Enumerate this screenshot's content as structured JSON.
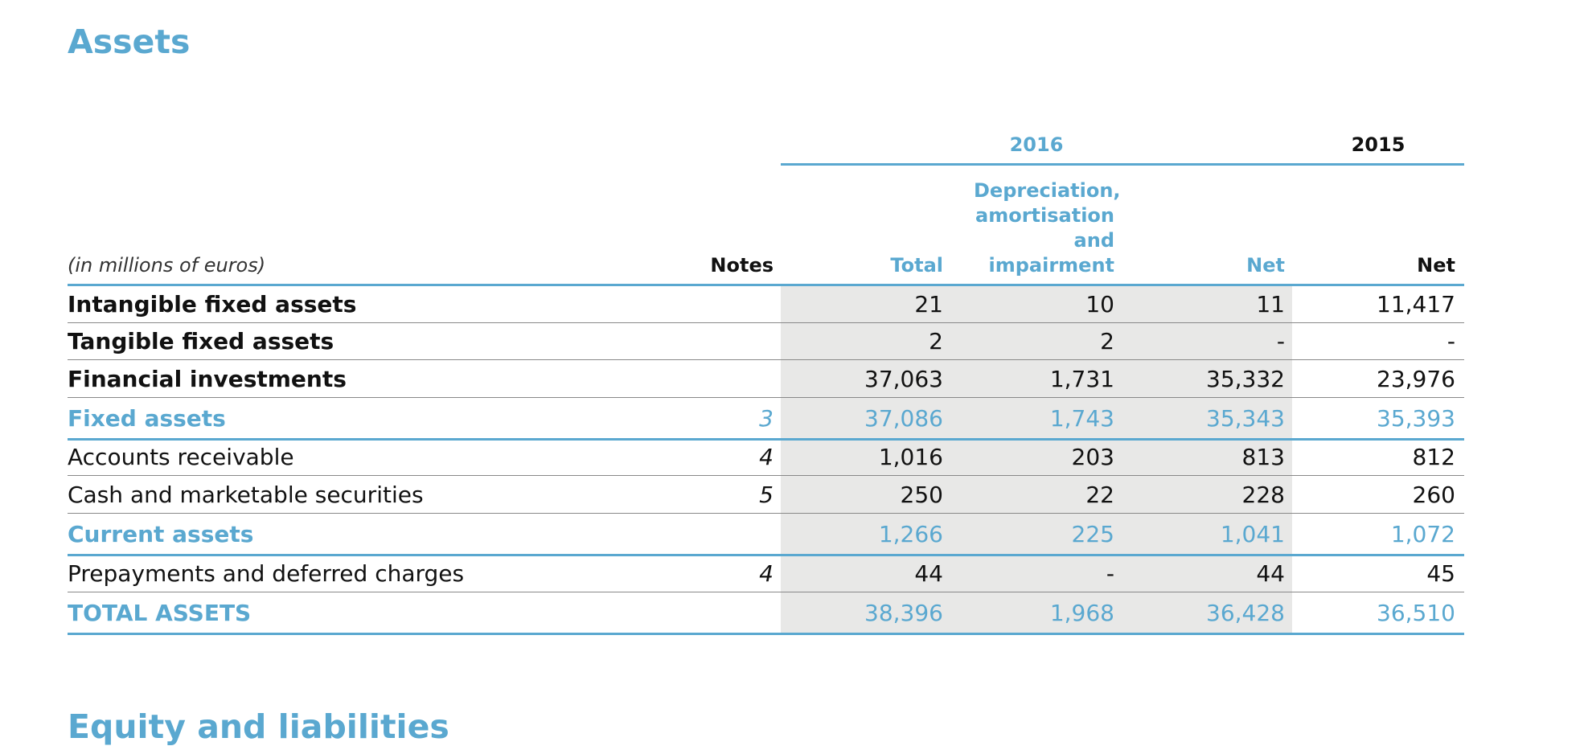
{
  "title": "Assets",
  "header": {
    "year_2016": "2016",
    "year_2015": "2015",
    "unit_note": "(in millions of euros)",
    "columns": [
      "Notes",
      "Total",
      "Depreciation, amortisation and impairment",
      "Net",
      "Net"
    ]
  },
  "table": {
    "rows": [
      {
        "label": "Intangible fixed assets",
        "cells": [
          null,
          "21",
          "10",
          "11",
          "11,417"
        ]
      },
      {
        "label": "Tangible fixed assets",
        "cells": [
          null,
          "2",
          "2",
          "-",
          "-"
        ]
      },
      {
        "label": "Financial investments",
        "cells": [
          null,
          "37,063",
          "1,731",
          "35,332",
          "23,976"
        ]
      },
      {
        "label": "Fixed assets",
        "cells": [
          "3",
          "37,086",
          "1,743",
          "35,343",
          "35,393"
        ]
      },
      {
        "label": "Accounts receivable",
        "cells": [
          "4",
          "1,016",
          "203",
          "813",
          "812"
        ]
      },
      {
        "label": "Cash and marketable securities",
        "cells": [
          "5",
          "250",
          "22",
          "228",
          "260"
        ]
      },
      {
        "label": "Current assets",
        "cells": [
          null,
          "1,266",
          "225",
          "1,041",
          "1,072"
        ]
      },
      {
        "label": "Prepayments and deferred charges",
        "cells": [
          "4",
          "44",
          "-",
          "44",
          "45"
        ]
      },
      {
        "label": "TOTAL ASSETS",
        "cells": [
          null,
          "38,396",
          "1,968",
          "36,428",
          "36,510"
        ]
      }
    ]
  },
  "next_section": "Equity and liabilities"
}
